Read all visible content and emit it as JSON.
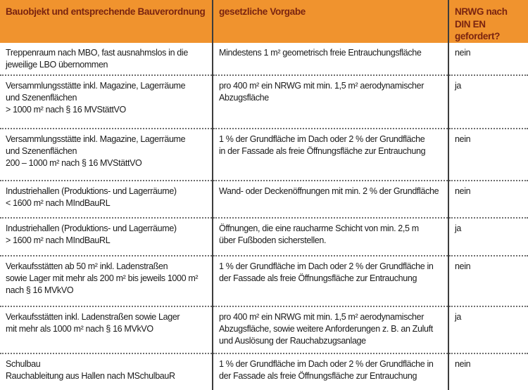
{
  "colors": {
    "header_bg": "#f0932e",
    "header_text": "#7a2410",
    "body_text": "#1a1a1a",
    "column_divider": "#3c3c3c",
    "row_divider_dotted": "#6e6e6e"
  },
  "table": {
    "headers": {
      "bauobjekt": "Bauobjekt und entsprechende Bauverordnung",
      "vorgabe": "gesetzliche Vorgabe",
      "nrwg": "NRWG nach\nDIN EN gefordert?"
    },
    "rows": [
      {
        "bauobjekt": "Treppenraum nach MBO, fast ausnahmslos in die\njeweilige LBO übernommen",
        "vorgabe": "Mindestens 1 m² geometrisch freie Entrauchungsfläche",
        "nrwg": "nein"
      },
      {
        "bauobjekt": "Versammlungsstätte inkl. Magazine, Lagerräume\nund Szenenflächen\n> 1000 m² nach § 16 MVStättVO",
        "vorgabe": "pro 400 m² ein NRWG mit min. 1,5 m² aerodynamischer\nAbzugsfläche",
        "nrwg": "ja"
      },
      {
        "bauobjekt": "Versammlungsstätte inkl. Magazine, Lagerräume\nund Szenenflächen\n200 – 1000 m² nach § 16 MVStättVO",
        "vorgabe": "1 % der Grundfläche im Dach oder 2 % der Grundfläche\nin der Fassade als freie Öffnungsfläche zur Entrauchung",
        "nrwg": "nein"
      },
      {
        "bauobjekt": "Industriehallen (Produktions- und Lagerräume)\n< 1600 m² nach MIndBauRL",
        "vorgabe": "Wand- oder Deckenöffnungen mit min. 2 % der Grundfläche",
        "nrwg": "nein"
      },
      {
        "bauobjekt": "Industriehallen (Produktions- und Lagerräume)\n> 1600 m² nach MIndBauRL",
        "vorgabe": "Öffnungen, die eine raucharme Schicht von min. 2,5 m\nüber Fußboden sicherstellen.",
        "nrwg": "ja"
      },
      {
        "bauobjekt": "Verkaufsstätten ab 50 m² inkl. Ladenstraßen\nsowie Lager mit mehr als 200 m² bis jeweils 1000 m²\nnach § 16 MVkVO",
        "vorgabe": "1 % der Grundfläche im Dach oder 2 % der Grundfläche in\nder Fassade als freie Öffnungsfläche zur Entrauchung",
        "nrwg": "nein"
      },
      {
        "bauobjekt": "Verkaufsstätten inkl. Ladenstraßen sowie Lager\nmit mehr als 1000 m² nach § 16 MVkVO",
        "vorgabe": "pro 400 m² ein NRWG mit min. 1,5 m² aerodynamischer\nAbzugsfläche, sowie weitere Anforderungen z. B. an Zuluft\nund Auslösung der Rauchabzugsanlage",
        "nrwg": "ja"
      },
      {
        "bauobjekt": "Schulbau\nRauchableitung aus Hallen nach MSchulbauR",
        "vorgabe": "1 % der Grundfläche im Dach oder 2 % der Grundfläche in\nder Fassade als freie Öffnungsfläche zur Entrauchung",
        "nrwg": "nein"
      }
    ]
  }
}
